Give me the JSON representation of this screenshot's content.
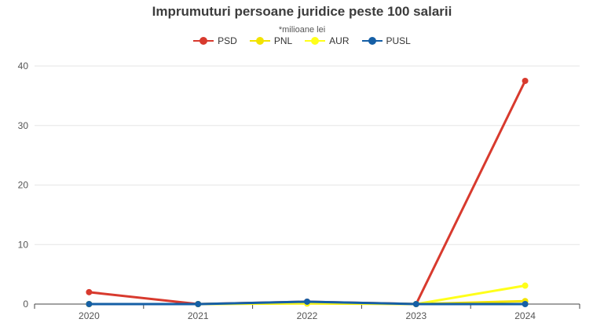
{
  "chart_data": {
    "type": "line",
    "title": "Imprumuturi persoane juridice peste 100 salarii",
    "subtitle": "*milioane lei",
    "categories": [
      "2020",
      "2021",
      "2022",
      "2023",
      "2024"
    ],
    "ylim": [
      0,
      40
    ],
    "yticks": [
      0,
      10,
      20,
      30,
      40
    ],
    "grid": true,
    "legend_position": "top",
    "series": [
      {
        "name": "PSD",
        "color": "#d83a2e",
        "values": [
          2.0,
          0.0,
          0.4,
          0.0,
          37.5
        ]
      },
      {
        "name": "PNL",
        "color": "#f2e300",
        "values": [
          0.0,
          0.0,
          0.1,
          0.0,
          0.5
        ]
      },
      {
        "name": "AUR",
        "color": "#ffff1a",
        "values": [
          0.0,
          0.0,
          0.2,
          0.0,
          3.1
        ]
      },
      {
        "name": "PUSL",
        "color": "#155fa6",
        "values": [
          0.0,
          0.0,
          0.4,
          0.0,
          0.0
        ]
      }
    ]
  }
}
